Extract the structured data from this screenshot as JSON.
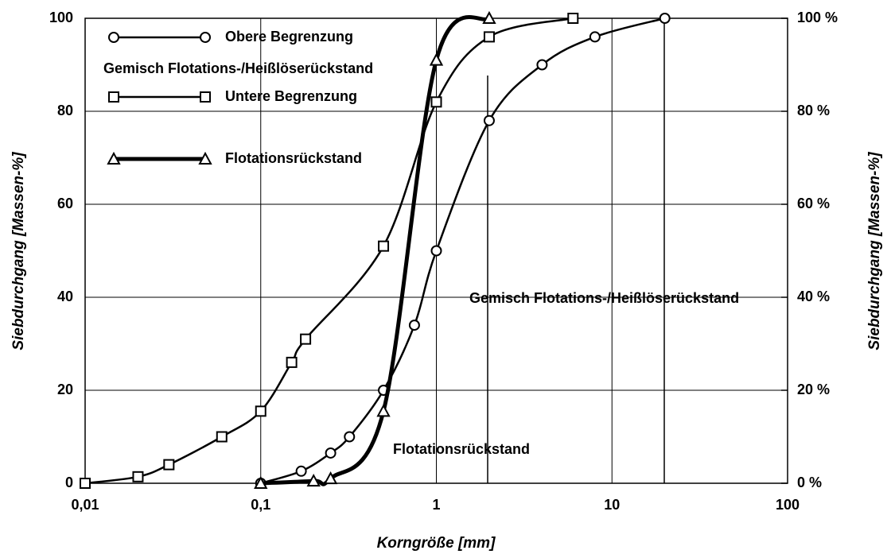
{
  "chart_data": {
    "type": "line",
    "xlabel": "Korngröße [mm]",
    "ylabel": "Siebdurchgang [Massen-%]",
    "y2label": "Siebdurchgang [Massen-%]",
    "xscale": "log",
    "xlim": [
      0.01,
      100
    ],
    "xticks": [
      {
        "value": 0.01,
        "label": "0,01"
      },
      {
        "value": 0.1,
        "label": "0,1"
      },
      1,
      10,
      100
    ],
    "ylim": [
      0,
      100
    ],
    "yticks": [
      0,
      20,
      40,
      60,
      80,
      100
    ],
    "y2lim": [
      0,
      100
    ],
    "y2ticks": [
      {
        "value": 0,
        "label": "0 %"
      },
      {
        "value": 20,
        "label": "20 %"
      },
      {
        "value": 40,
        "label": "40 %"
      },
      {
        "value": 60,
        "label": "60 %"
      },
      {
        "value": 80,
        "label": "80 %"
      },
      {
        "value": 100,
        "label": "100 %"
      }
    ],
    "grid": true,
    "legend_note": "Gemisch Flotations-/Heißlöserückstand",
    "annotations": [
      "Gemisch Flotations-/Heißlöserückstand",
      "Flotationsrückstand"
    ],
    "series": [
      {
        "name": "Obere Begrenzung",
        "color": "#000000",
        "marker": "circle",
        "x": [
          0.1,
          0.17,
          0.25,
          0.32,
          0.5,
          0.75,
          1,
          2,
          4,
          8,
          20
        ],
        "values": [
          0,
          2.6,
          6.5,
          10,
          20,
          34,
          50,
          78,
          90,
          96,
          100
        ]
      },
      {
        "name": "Untere Begrenzung",
        "color": "#000000",
        "marker": "square",
        "x": [
          0.01,
          0.02,
          0.03,
          0.06,
          0.1,
          0.15,
          0.18,
          0.5,
          1,
          2,
          6
        ],
        "values": [
          0,
          1.4,
          4,
          10,
          15.5,
          26,
          31,
          51,
          82,
          96,
          100
        ]
      },
      {
        "name": "Flotationsrückstand",
        "color": "#000000",
        "marker": "triangle",
        "x": [
          0.1,
          0.2,
          0.25,
          0.5,
          1,
          2
        ],
        "values": [
          0,
          0.5,
          1,
          15.5,
          91,
          100
        ]
      }
    ]
  }
}
